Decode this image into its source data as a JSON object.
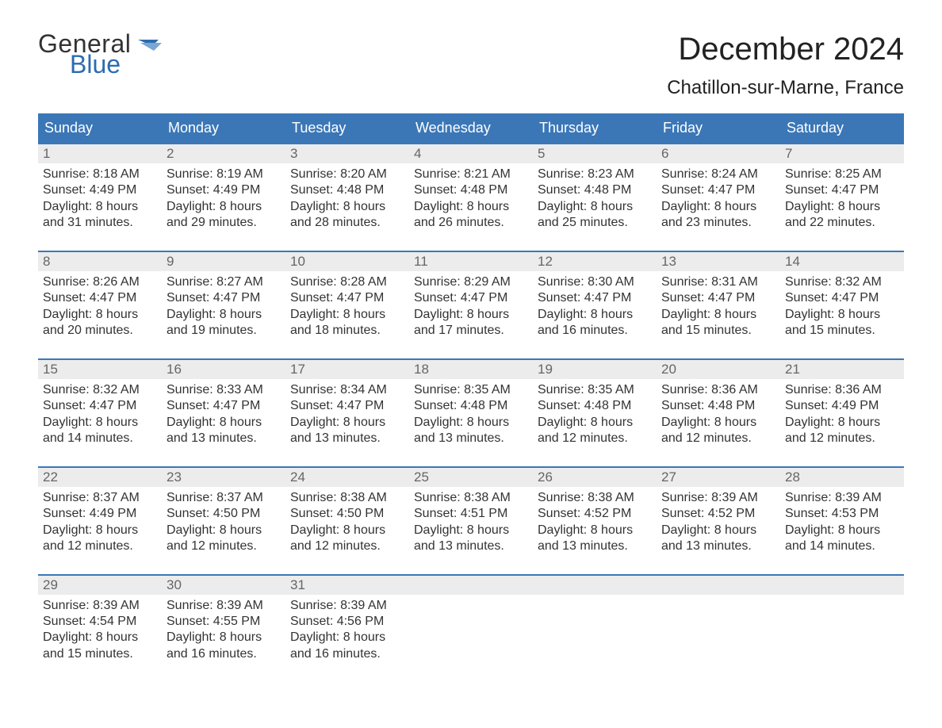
{
  "brand": {
    "word1": "General",
    "word2": "Blue"
  },
  "title": "December 2024",
  "location": "Chatillon-sur-Marne, France",
  "colors": {
    "header_bg": "#3b77b7",
    "header_text": "#ffffff",
    "daynum_bg": "#ececec",
    "daynum_text": "#666666",
    "brand_blue": "#2d6bb0",
    "body_text": "#333333",
    "page_bg": "#ffffff"
  },
  "typography": {
    "title_size_pt": 30,
    "location_size_pt": 18,
    "dayheader_size_pt": 14,
    "body_size_pt": 12
  },
  "layout": {
    "columns": 7,
    "weeks": 5,
    "week_border_top": "2px solid #3b77b7"
  },
  "day_labels": [
    "Sunday",
    "Monday",
    "Tuesday",
    "Wednesday",
    "Thursday",
    "Friday",
    "Saturday"
  ],
  "weeks": [
    [
      {
        "n": "1",
        "sunrise": "Sunrise: 8:18 AM",
        "sunset": "Sunset: 4:49 PM",
        "d1": "Daylight: 8 hours",
        "d2": "and 31 minutes."
      },
      {
        "n": "2",
        "sunrise": "Sunrise: 8:19 AM",
        "sunset": "Sunset: 4:49 PM",
        "d1": "Daylight: 8 hours",
        "d2": "and 29 minutes."
      },
      {
        "n": "3",
        "sunrise": "Sunrise: 8:20 AM",
        "sunset": "Sunset: 4:48 PM",
        "d1": "Daylight: 8 hours",
        "d2": "and 28 minutes."
      },
      {
        "n": "4",
        "sunrise": "Sunrise: 8:21 AM",
        "sunset": "Sunset: 4:48 PM",
        "d1": "Daylight: 8 hours",
        "d2": "and 26 minutes."
      },
      {
        "n": "5",
        "sunrise": "Sunrise: 8:23 AM",
        "sunset": "Sunset: 4:48 PM",
        "d1": "Daylight: 8 hours",
        "d2": "and 25 minutes."
      },
      {
        "n": "6",
        "sunrise": "Sunrise: 8:24 AM",
        "sunset": "Sunset: 4:47 PM",
        "d1": "Daylight: 8 hours",
        "d2": "and 23 minutes."
      },
      {
        "n": "7",
        "sunrise": "Sunrise: 8:25 AM",
        "sunset": "Sunset: 4:47 PM",
        "d1": "Daylight: 8 hours",
        "d2": "and 22 minutes."
      }
    ],
    [
      {
        "n": "8",
        "sunrise": "Sunrise: 8:26 AM",
        "sunset": "Sunset: 4:47 PM",
        "d1": "Daylight: 8 hours",
        "d2": "and 20 minutes."
      },
      {
        "n": "9",
        "sunrise": "Sunrise: 8:27 AM",
        "sunset": "Sunset: 4:47 PM",
        "d1": "Daylight: 8 hours",
        "d2": "and 19 minutes."
      },
      {
        "n": "10",
        "sunrise": "Sunrise: 8:28 AM",
        "sunset": "Sunset: 4:47 PM",
        "d1": "Daylight: 8 hours",
        "d2": "and 18 minutes."
      },
      {
        "n": "11",
        "sunrise": "Sunrise: 8:29 AM",
        "sunset": "Sunset: 4:47 PM",
        "d1": "Daylight: 8 hours",
        "d2": "and 17 minutes."
      },
      {
        "n": "12",
        "sunrise": "Sunrise: 8:30 AM",
        "sunset": "Sunset: 4:47 PM",
        "d1": "Daylight: 8 hours",
        "d2": "and 16 minutes."
      },
      {
        "n": "13",
        "sunrise": "Sunrise: 8:31 AM",
        "sunset": "Sunset: 4:47 PM",
        "d1": "Daylight: 8 hours",
        "d2": "and 15 minutes."
      },
      {
        "n": "14",
        "sunrise": "Sunrise: 8:32 AM",
        "sunset": "Sunset: 4:47 PM",
        "d1": "Daylight: 8 hours",
        "d2": "and 15 minutes."
      }
    ],
    [
      {
        "n": "15",
        "sunrise": "Sunrise: 8:32 AM",
        "sunset": "Sunset: 4:47 PM",
        "d1": "Daylight: 8 hours",
        "d2": "and 14 minutes."
      },
      {
        "n": "16",
        "sunrise": "Sunrise: 8:33 AM",
        "sunset": "Sunset: 4:47 PM",
        "d1": "Daylight: 8 hours",
        "d2": "and 13 minutes."
      },
      {
        "n": "17",
        "sunrise": "Sunrise: 8:34 AM",
        "sunset": "Sunset: 4:47 PM",
        "d1": "Daylight: 8 hours",
        "d2": "and 13 minutes."
      },
      {
        "n": "18",
        "sunrise": "Sunrise: 8:35 AM",
        "sunset": "Sunset: 4:48 PM",
        "d1": "Daylight: 8 hours",
        "d2": "and 13 minutes."
      },
      {
        "n": "19",
        "sunrise": "Sunrise: 8:35 AM",
        "sunset": "Sunset: 4:48 PM",
        "d1": "Daylight: 8 hours",
        "d2": "and 12 minutes."
      },
      {
        "n": "20",
        "sunrise": "Sunrise: 8:36 AM",
        "sunset": "Sunset: 4:48 PM",
        "d1": "Daylight: 8 hours",
        "d2": "and 12 minutes."
      },
      {
        "n": "21",
        "sunrise": "Sunrise: 8:36 AM",
        "sunset": "Sunset: 4:49 PM",
        "d1": "Daylight: 8 hours",
        "d2": "and 12 minutes."
      }
    ],
    [
      {
        "n": "22",
        "sunrise": "Sunrise: 8:37 AM",
        "sunset": "Sunset: 4:49 PM",
        "d1": "Daylight: 8 hours",
        "d2": "and 12 minutes."
      },
      {
        "n": "23",
        "sunrise": "Sunrise: 8:37 AM",
        "sunset": "Sunset: 4:50 PM",
        "d1": "Daylight: 8 hours",
        "d2": "and 12 minutes."
      },
      {
        "n": "24",
        "sunrise": "Sunrise: 8:38 AM",
        "sunset": "Sunset: 4:50 PM",
        "d1": "Daylight: 8 hours",
        "d2": "and 12 minutes."
      },
      {
        "n": "25",
        "sunrise": "Sunrise: 8:38 AM",
        "sunset": "Sunset: 4:51 PM",
        "d1": "Daylight: 8 hours",
        "d2": "and 13 minutes."
      },
      {
        "n": "26",
        "sunrise": "Sunrise: 8:38 AM",
        "sunset": "Sunset: 4:52 PM",
        "d1": "Daylight: 8 hours",
        "d2": "and 13 minutes."
      },
      {
        "n": "27",
        "sunrise": "Sunrise: 8:39 AM",
        "sunset": "Sunset: 4:52 PM",
        "d1": "Daylight: 8 hours",
        "d2": "and 13 minutes."
      },
      {
        "n": "28",
        "sunrise": "Sunrise: 8:39 AM",
        "sunset": "Sunset: 4:53 PM",
        "d1": "Daylight: 8 hours",
        "d2": "and 14 minutes."
      }
    ],
    [
      {
        "n": "29",
        "sunrise": "Sunrise: 8:39 AM",
        "sunset": "Sunset: 4:54 PM",
        "d1": "Daylight: 8 hours",
        "d2": "and 15 minutes."
      },
      {
        "n": "30",
        "sunrise": "Sunrise: 8:39 AM",
        "sunset": "Sunset: 4:55 PM",
        "d1": "Daylight: 8 hours",
        "d2": "and 16 minutes."
      },
      {
        "n": "31",
        "sunrise": "Sunrise: 8:39 AM",
        "sunset": "Sunset: 4:56 PM",
        "d1": "Daylight: 8 hours",
        "d2": "and 16 minutes."
      },
      {
        "n": "",
        "empty": true
      },
      {
        "n": "",
        "empty": true
      },
      {
        "n": "",
        "empty": true
      },
      {
        "n": "",
        "empty": true
      }
    ]
  ]
}
